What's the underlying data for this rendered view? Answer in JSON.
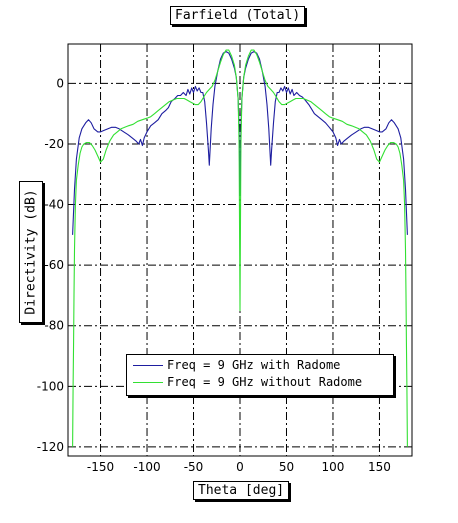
{
  "chart_data": {
    "type": "line",
    "title": "Farfield (Total)",
    "xlabel": "Theta [deg]",
    "ylabel": "Directivity (dB)",
    "xlim": [
      -185,
      185
    ],
    "ylim": [
      -123,
      13
    ],
    "x_ticks": [
      -150,
      -100,
      -50,
      0,
      50,
      100,
      150
    ],
    "y_ticks": [
      0,
      -20,
      -40,
      -60,
      -80,
      -100,
      -120
    ],
    "grid": true,
    "legend_position": "bottom-center",
    "series": [
      {
        "name": "Freq = 9 GHz with Radome",
        "color": "#1e1ea0",
        "points": [
          [
            -180,
            -50
          ],
          [
            -178,
            -35
          ],
          [
            -176,
            -25
          ],
          [
            -173,
            -18
          ],
          [
            -170,
            -15
          ],
          [
            -166,
            -13
          ],
          [
            -163,
            -12
          ],
          [
            -160,
            -13
          ],
          [
            -157,
            -15
          ],
          [
            -153,
            -16
          ],
          [
            -150,
            -16
          ],
          [
            -146,
            -15.5
          ],
          [
            -142,
            -15
          ],
          [
            -138,
            -14.5
          ],
          [
            -134,
            -14.5
          ],
          [
            -130,
            -15
          ],
          [
            -125,
            -16
          ],
          [
            -120,
            -17
          ],
          [
            -116,
            -18
          ],
          [
            -112,
            -19
          ],
          [
            -109,
            -20
          ],
          [
            -107,
            -18.5
          ],
          [
            -105,
            -20.5
          ],
          [
            -103,
            -18
          ],
          [
            -100,
            -16
          ],
          [
            -96,
            -14
          ],
          [
            -92,
            -13
          ],
          [
            -88,
            -12
          ],
          [
            -84,
            -10
          ],
          [
            -80,
            -9
          ],
          [
            -77,
            -8
          ],
          [
            -74,
            -6
          ],
          [
            -70,
            -5
          ],
          [
            -67,
            -4
          ],
          [
            -64,
            -4
          ],
          [
            -61,
            -3
          ],
          [
            -58,
            -4
          ],
          [
            -56,
            -2
          ],
          [
            -54,
            -3.5
          ],
          [
            -52,
            -1.5
          ],
          [
            -50,
            -3
          ],
          [
            -48,
            -1
          ],
          [
            -46,
            -2.5
          ],
          [
            -44,
            -1.5
          ],
          [
            -42,
            -3
          ],
          [
            -40,
            -3
          ],
          [
            -38,
            -6
          ],
          [
            -36,
            -13
          ],
          [
            -34,
            -22
          ],
          [
            -33,
            -27
          ],
          [
            -31,
            -15
          ],
          [
            -29,
            -7
          ],
          [
            -27,
            -1
          ],
          [
            -24,
            4
          ],
          [
            -21,
            8
          ],
          [
            -18,
            10
          ],
          [
            -15,
            10.5
          ],
          [
            -12,
            10
          ],
          [
            -9,
            8
          ],
          [
            -6,
            5
          ],
          [
            -4,
            2
          ],
          [
            -2,
            -5
          ],
          [
            -1,
            -15
          ],
          [
            0,
            -37
          ],
          [
            1,
            -15
          ],
          [
            2,
            -5
          ],
          [
            4,
            2
          ],
          [
            6,
            5
          ],
          [
            9,
            8
          ],
          [
            12,
            10
          ],
          [
            15,
            10.5
          ],
          [
            18,
            10
          ],
          [
            21,
            8
          ],
          [
            24,
            4
          ],
          [
            27,
            -1
          ],
          [
            29,
            -7
          ],
          [
            31,
            -15
          ],
          [
            33,
            -27
          ],
          [
            34,
            -22
          ],
          [
            36,
            -13
          ],
          [
            38,
            -6
          ],
          [
            40,
            -3
          ],
          [
            42,
            -3
          ],
          [
            44,
            -1.5
          ],
          [
            46,
            -2.5
          ],
          [
            48,
            -1
          ],
          [
            50,
            -3
          ],
          [
            52,
            -1.5
          ],
          [
            54,
            -3.5
          ],
          [
            56,
            -2
          ],
          [
            58,
            -4
          ],
          [
            61,
            -3
          ],
          [
            64,
            -4
          ],
          [
            67,
            -4.5
          ],
          [
            70,
            -5.5
          ],
          [
            74,
            -7
          ],
          [
            77,
            -8.5
          ],
          [
            80,
            -10
          ],
          [
            84,
            -11
          ],
          [
            88,
            -12
          ],
          [
            92,
            -13
          ],
          [
            96,
            -14.5
          ],
          [
            100,
            -16
          ],
          [
            103,
            -18
          ],
          [
            105,
            -20.5
          ],
          [
            107,
            -18.5
          ],
          [
            109,
            -20
          ],
          [
            112,
            -19
          ],
          [
            116,
            -18
          ],
          [
            120,
            -17
          ],
          [
            125,
            -16
          ],
          [
            130,
            -15
          ],
          [
            134,
            -14.5
          ],
          [
            138,
            -14.5
          ],
          [
            142,
            -15
          ],
          [
            146,
            -15.5
          ],
          [
            150,
            -16
          ],
          [
            153,
            -16
          ],
          [
            157,
            -15
          ],
          [
            160,
            -13
          ],
          [
            163,
            -12
          ],
          [
            166,
            -13
          ],
          [
            170,
            -15
          ],
          [
            173,
            -18
          ],
          [
            176,
            -25
          ],
          [
            178,
            -35
          ],
          [
            180,
            -50
          ]
        ]
      },
      {
        "name": "Freq = 9 GHz without Radome",
        "color": "#33e033",
        "points": [
          [
            -180,
            -120
          ],
          [
            -179.5,
            -100
          ],
          [
            -179,
            -85
          ],
          [
            -178.5,
            -70
          ],
          [
            -178,
            -55
          ],
          [
            -177,
            -40
          ],
          [
            -176,
            -32
          ],
          [
            -174,
            -27
          ],
          [
            -172,
            -23
          ],
          [
            -170,
            -21
          ],
          [
            -168,
            -20
          ],
          [
            -165,
            -19.5
          ],
          [
            -162,
            -19.5
          ],
          [
            -159,
            -20.5
          ],
          [
            -156,
            -22
          ],
          [
            -153,
            -24
          ],
          [
            -150,
            -26
          ],
          [
            -147,
            -25
          ],
          [
            -144,
            -22
          ],
          [
            -140,
            -19
          ],
          [
            -136,
            -17
          ],
          [
            -132,
            -16
          ],
          [
            -128,
            -15
          ],
          [
            -124,
            -14.5
          ],
          [
            -120,
            -14
          ],
          [
            -115,
            -13.5
          ],
          [
            -110,
            -12.5
          ],
          [
            -105,
            -12
          ],
          [
            -100,
            -11.5
          ],
          [
            -96,
            -11
          ],
          [
            -92,
            -10
          ],
          [
            -88,
            -9
          ],
          [
            -84,
            -8
          ],
          [
            -80,
            -7
          ],
          [
            -76,
            -6
          ],
          [
            -72,
            -5.5
          ],
          [
            -68,
            -5
          ],
          [
            -64,
            -5
          ],
          [
            -60,
            -5
          ],
          [
            -57,
            -5.5
          ],
          [
            -54,
            -6
          ],
          [
            -51,
            -6.5
          ],
          [
            -48,
            -7
          ],
          [
            -45,
            -7
          ],
          [
            -42,
            -6
          ],
          [
            -39,
            -4.5
          ],
          [
            -36,
            -3
          ],
          [
            -33,
            -2
          ],
          [
            -30,
            -1
          ],
          [
            -27,
            1
          ],
          [
            -24,
            4
          ],
          [
            -21,
            7
          ],
          [
            -18,
            9.5
          ],
          [
            -15,
            11
          ],
          [
            -12,
            11
          ],
          [
            -9,
            9
          ],
          [
            -6,
            6
          ],
          [
            -4,
            2
          ],
          [
            -2,
            -5
          ],
          [
            -1,
            -20
          ],
          [
            0,
            -75
          ],
          [
            1,
            -20
          ],
          [
            2,
            -5
          ],
          [
            4,
            2
          ],
          [
            6,
            6
          ],
          [
            9,
            9
          ],
          [
            12,
            11
          ],
          [
            15,
            11
          ],
          [
            18,
            9.5
          ],
          [
            21,
            7
          ],
          [
            24,
            4
          ],
          [
            27,
            1
          ],
          [
            30,
            -1
          ],
          [
            33,
            -2
          ],
          [
            36,
            -3
          ],
          [
            39,
            -4.5
          ],
          [
            42,
            -6
          ],
          [
            45,
            -7
          ],
          [
            48,
            -7
          ],
          [
            51,
            -6.5
          ],
          [
            54,
            -6
          ],
          [
            57,
            -5.5
          ],
          [
            60,
            -5
          ],
          [
            64,
            -5
          ],
          [
            68,
            -5
          ],
          [
            72,
            -5.5
          ],
          [
            76,
            -6
          ],
          [
            80,
            -7
          ],
          [
            84,
            -8
          ],
          [
            88,
            -9
          ],
          [
            92,
            -10
          ],
          [
            96,
            -11
          ],
          [
            100,
            -11.5
          ],
          [
            105,
            -12
          ],
          [
            110,
            -12.5
          ],
          [
            115,
            -13.5
          ],
          [
            120,
            -14
          ],
          [
            124,
            -14.5
          ],
          [
            128,
            -15
          ],
          [
            132,
            -16
          ],
          [
            136,
            -17
          ],
          [
            140,
            -19
          ],
          [
            144,
            -22
          ],
          [
            147,
            -25
          ],
          [
            150,
            -26
          ],
          [
            153,
            -24
          ],
          [
            156,
            -22
          ],
          [
            159,
            -20.5
          ],
          [
            162,
            -19.5
          ],
          [
            165,
            -19.5
          ],
          [
            168,
            -20
          ],
          [
            170,
            -21
          ],
          [
            172,
            -23
          ],
          [
            174,
            -27
          ],
          [
            176,
            -32
          ],
          [
            177,
            -40
          ],
          [
            178,
            -55
          ],
          [
            178.5,
            -70
          ],
          [
            179,
            -85
          ],
          [
            179.5,
            -100
          ],
          [
            180,
            -120
          ]
        ]
      }
    ]
  }
}
